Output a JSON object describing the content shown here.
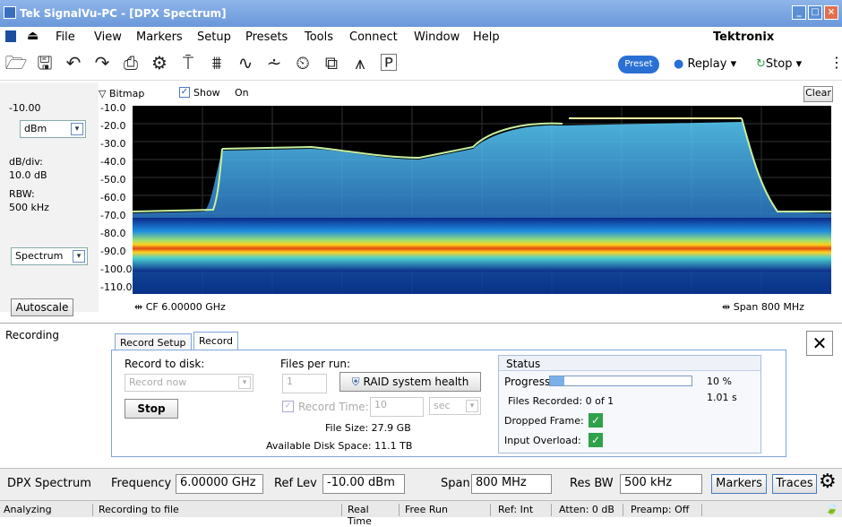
{
  "title_bar": {
    "title": "Tek SignalVu-PC - [DPX Spectrum]"
  },
  "menu": [
    "File",
    "View",
    "Markers",
    "Setup",
    "Presets",
    "Tools",
    "Connect",
    "Window",
    "Help"
  ],
  "brand": "Tektronix",
  "toolbar": {
    "preset": "Preset",
    "replay": "Replay",
    "stop": "Stop"
  },
  "display": {
    "bitmap": "Bitmap",
    "show": "Show",
    "on": "On",
    "clear": "Clear"
  },
  "left_panel": {
    "ref_value": "-10.00",
    "unit": "dBm",
    "dbdiv_label": "dB/div:",
    "dbdiv_value": "10.0 dB",
    "rbw_label": "RBW:",
    "rbw_value": "500 kHz",
    "mode": "Spectrum",
    "autoscale": "Autoscale"
  },
  "y_ticks": [
    "-10.0",
    "-20.0",
    "-30.0",
    "-40.0",
    "-50.0",
    "-60.0",
    "-70.0",
    "-80.0",
    "-90.0",
    "-100.0",
    "-110.0"
  ],
  "cf": "CF  6.00000 GHz",
  "span_label": "Span  800 MHz",
  "recording": {
    "panel_title": "Recording",
    "tab_setup": "Record Setup",
    "tab_record": "Record",
    "record_to_disk": "Record to disk:",
    "record_now": "Record now",
    "stop": "Stop",
    "files_per_run": "Files per run:",
    "files_value": "1",
    "raid": "RAID system health",
    "record_time": "Record Time:",
    "record_time_value": "10",
    "record_time_unit": "sec",
    "file_size": "File Size: 27.9 GB",
    "disk_space": "Available Disk Space: 11.1 TB",
    "status_title": "Status",
    "progress_label": "Progress",
    "progress_pct": "10 %",
    "progress_time": "1.01 s",
    "progress_fraction": 0.1,
    "files_recorded": "Files Recorded:  0 of 1",
    "dropped_frame": "Dropped Frame:",
    "input_overload": "Input Overload:"
  },
  "bottom": {
    "name": "DPX Spectrum",
    "freq_label": "Frequency",
    "freq": "6.00000 GHz",
    "reflev_label": "Ref Lev",
    "reflev": "-10.00 dBm",
    "span_label": "Span",
    "span": "800 MHz",
    "resbw_label": "Res BW",
    "resbw": "500 kHz",
    "markers": "Markers",
    "traces": "Traces"
  },
  "status_bar": [
    "Analyzing",
    "Recording to file",
    "Real Time",
    "Free Run",
    "Ref: Int",
    "Atten: 0 dB",
    "Preamp: Off"
  ]
}
